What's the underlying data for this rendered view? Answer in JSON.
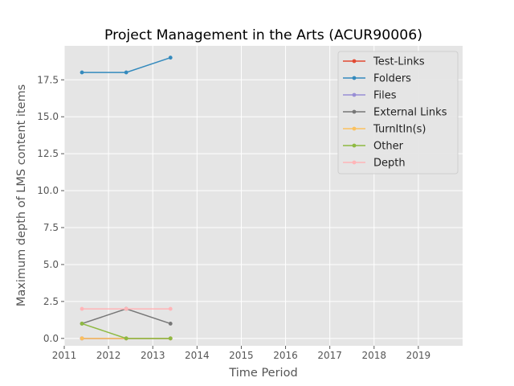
{
  "chart_data": {
    "type": "line",
    "title": "Project Management in the Arts (ACUR90006)",
    "xlabel": "Time Period",
    "ylabel": "Maximum depth of LMS content items",
    "xlim": [
      2011,
      2020
    ],
    "ylim": [
      -0.5,
      19.8
    ],
    "xticks": [
      2011,
      2012,
      2013,
      2014,
      2015,
      2016,
      2017,
      2018,
      2019
    ],
    "xtick_labels": [
      "2011",
      "2012",
      "2013",
      "2014",
      "2015",
      "2016",
      "2017",
      "2018",
      "2019"
    ],
    "yticks": [
      0,
      2.5,
      5,
      7.5,
      10,
      12.5,
      15,
      17.5
    ],
    "ytick_labels": [
      "0.0",
      "2.5",
      "5.0",
      "7.5",
      "10.0",
      "12.5",
      "15.0",
      "17.5"
    ],
    "x": [
      2011.4,
      2012.4,
      2013.4
    ],
    "grid": true,
    "legend_position": "top-right",
    "series": [
      {
        "name": "Test-Links",
        "color": "#E24A33",
        "values": [
          0,
          0,
          0
        ]
      },
      {
        "name": "Folders",
        "color": "#348ABD",
        "values": [
          18,
          18,
          19
        ]
      },
      {
        "name": "Files",
        "color": "#988ED5",
        "values": [
          0,
          0,
          0
        ]
      },
      {
        "name": "External Links",
        "color": "#777777",
        "values": [
          1,
          2,
          1
        ]
      },
      {
        "name": "TurnItIn(s)",
        "color": "#FBC15E",
        "values": [
          0,
          0,
          0
        ]
      },
      {
        "name": "Other",
        "color": "#8EBA42",
        "values": [
          1,
          0,
          0
        ]
      },
      {
        "name": "Depth",
        "color": "#FFB5B8",
        "values": [
          2,
          2,
          2
        ]
      }
    ]
  }
}
